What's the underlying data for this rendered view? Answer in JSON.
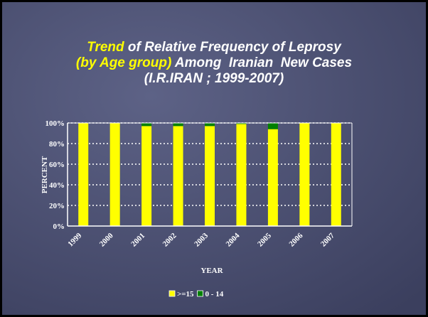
{
  "chart_data": {
    "type": "stacked_bar",
    "title_lines": [
      [
        {
          "text": "Trend",
          "color": "#ffff00"
        },
        {
          "text": " of Relative Frequency of Leprosy",
          "color": "#ffffff"
        }
      ],
      [
        {
          "text": "(by Age group)",
          "color": "#ffff00"
        },
        {
          "text": " Among  Iranian  New Cases",
          "color": "#ffffff"
        }
      ],
      [
        {
          "text": "(I.R.IRAN ; 1999-2007)",
          "color": "#ffffff"
        }
      ]
    ],
    "xlabel": "YEAR",
    "ylabel": "PERCENT",
    "categories": [
      "1999",
      "2000",
      "2001",
      "2002",
      "2003",
      "2004",
      "2005",
      "2006",
      "2007"
    ],
    "series": [
      {
        "name": ">=15",
        "color": "#ffff00",
        "values": [
          100,
          100,
          97,
          97,
          97,
          99,
          94,
          100,
          100
        ]
      },
      {
        "name": "0 - 14",
        "color": "#008000",
        "values": [
          0,
          0,
          3,
          3,
          3,
          1,
          6,
          0,
          0
        ]
      }
    ],
    "ylim": [
      0,
      100
    ],
    "yticks": [
      {
        "value": 0,
        "label": "0%"
      },
      {
        "value": 20,
        "label": "20%"
      },
      {
        "value": 40,
        "label": "40%"
      },
      {
        "value": 60,
        "label": "60%"
      },
      {
        "value": 80,
        "label": "80%"
      },
      {
        "value": 100,
        "label": "100%"
      }
    ],
    "grid": true,
    "legend": "bottom"
  }
}
